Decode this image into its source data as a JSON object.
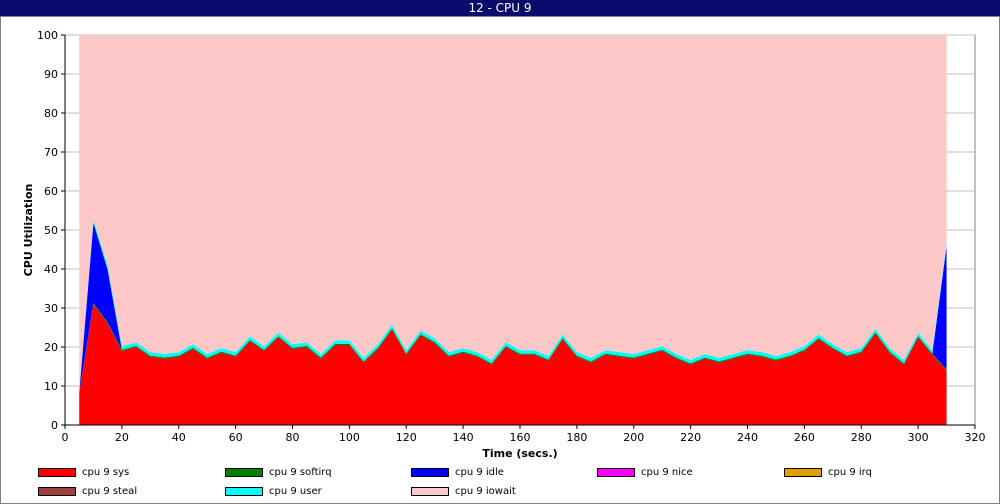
{
  "window": {
    "title": "12 - CPU 9"
  },
  "chart_data": {
    "type": "area",
    "stacked": true,
    "title": "12 - CPU 9",
    "xlabel": "Time (secs.)",
    "ylabel": "CPU Utilization",
    "xlim": [
      0,
      320
    ],
    "ylim": [
      0,
      100
    ],
    "xticks": [
      0,
      20,
      40,
      60,
      80,
      100,
      120,
      140,
      160,
      180,
      200,
      220,
      240,
      260,
      280,
      300,
      320
    ],
    "yticks": [
      0,
      10,
      20,
      30,
      40,
      50,
      60,
      70,
      80,
      90,
      100
    ],
    "grid": true,
    "legend_position": "bottom",
    "x": [
      5,
      10,
      15,
      20,
      25,
      30,
      35,
      40,
      45,
      50,
      55,
      60,
      65,
      70,
      75,
      80,
      85,
      90,
      95,
      100,
      105,
      110,
      115,
      120,
      125,
      130,
      135,
      140,
      145,
      150,
      155,
      160,
      165,
      170,
      175,
      180,
      185,
      190,
      195,
      200,
      205,
      210,
      215,
      220,
      225,
      230,
      235,
      240,
      245,
      250,
      255,
      260,
      265,
      270,
      275,
      280,
      285,
      290,
      295,
      300,
      305,
      310
    ],
    "series": [
      {
        "name": "cpu 9 sys",
        "color": "#ff0000",
        "values": [
          8,
          31,
          26,
          19,
          20,
          17.5,
          17,
          17.5,
          19.5,
          17,
          18.5,
          17.5,
          21.5,
          19,
          22.5,
          19.5,
          20,
          17,
          20.5,
          20.5,
          16,
          19.5,
          24.5,
          18,
          23,
          21,
          17.5,
          18.5,
          17.5,
          15.5,
          20,
          18,
          18,
          16.5,
          22,
          17.5,
          16,
          18,
          17.5,
          17,
          18,
          19,
          17,
          15.5,
          17,
          16,
          17,
          18,
          17.5,
          16.5,
          17.5,
          19,
          22,
          19.5,
          17.5,
          18.5,
          23.5,
          18.5,
          15.5,
          22.5,
          18,
          14
        ]
      },
      {
        "name": "cpu 9 softirq",
        "color": "#008000",
        "values": [
          0.2,
          0.3,
          0.3,
          0.3,
          0.3,
          0.3,
          0.3,
          0.3,
          0.3,
          0.3,
          0.3,
          0.3,
          0.3,
          0.3,
          0.3,
          0.3,
          0.3,
          0.3,
          0.3,
          0.3,
          0.3,
          0.3,
          0.3,
          0.3,
          0.3,
          0.3,
          0.3,
          0.3,
          0.3,
          0.3,
          0.3,
          0.3,
          0.3,
          0.3,
          0.3,
          0.3,
          0.3,
          0.3,
          0.3,
          0.3,
          0.3,
          0.3,
          0.3,
          0.3,
          0.3,
          0.3,
          0.3,
          0.3,
          0.3,
          0.3,
          0.3,
          0.3,
          0.3,
          0.3,
          0.3,
          0.3,
          0.3,
          0.3,
          0.3,
          0.3,
          0.3,
          0.3
        ]
      },
      {
        "name": "cpu 9 idle",
        "color": "#0000ff",
        "values": [
          0,
          20.5,
          13.5,
          0,
          0,
          0,
          0,
          0,
          0,
          0,
          0,
          0,
          0,
          0,
          0,
          0,
          0,
          0,
          0,
          0,
          0,
          0,
          0,
          0,
          0,
          0,
          0,
          0,
          0,
          0,
          0,
          0,
          0,
          0,
          0,
          0,
          0,
          0,
          0,
          0,
          0,
          0,
          0,
          0,
          0,
          0,
          0,
          0,
          0,
          0,
          0,
          0,
          0,
          0,
          0,
          0,
          0,
          0,
          0,
          0,
          0,
          31.5
        ]
      },
      {
        "name": "cpu 9 nice",
        "color": "#ff00ff",
        "values": [
          0,
          0,
          0,
          0,
          0,
          0,
          0,
          0,
          0,
          0,
          0,
          0,
          0,
          0,
          0,
          0,
          0,
          0,
          0,
          0,
          0,
          0,
          0,
          0,
          0,
          0,
          0,
          0,
          0,
          0,
          0,
          0,
          0,
          0,
          0,
          0,
          0,
          0,
          0,
          0,
          0,
          0,
          0,
          0,
          0,
          0,
          0,
          0,
          0,
          0,
          0,
          0,
          0,
          0,
          0,
          0,
          0,
          0,
          0,
          0,
          0,
          0
        ]
      },
      {
        "name": "cpu 9 irq",
        "color": "#e0a000",
        "values": [
          0,
          0,
          0,
          0,
          0,
          0,
          0,
          0,
          0,
          0,
          0,
          0,
          0,
          0,
          0,
          0,
          0,
          0,
          0,
          0,
          0,
          0,
          0,
          0,
          0,
          0,
          0,
          0,
          0,
          0,
          0,
          0,
          0,
          0,
          0,
          0,
          0,
          0,
          0,
          0,
          0,
          0,
          0,
          0,
          0,
          0,
          0,
          0,
          0,
          0,
          0,
          0,
          0,
          0,
          0,
          0,
          0,
          0,
          0,
          0,
          0,
          0
        ]
      },
      {
        "name": "cpu 9 steal",
        "color": "#a0403f",
        "values": [
          0,
          0,
          0,
          0,
          0,
          0,
          0,
          0,
          0,
          0,
          0,
          0,
          0,
          0,
          0,
          0,
          0,
          0,
          0,
          0,
          0,
          0,
          0,
          0,
          0,
          0,
          0,
          0,
          0,
          0,
          0,
          0,
          0,
          0,
          0,
          0,
          0,
          0,
          0,
          0,
          0,
          0,
          0,
          0,
          0,
          0,
          0,
          0,
          0,
          0,
          0,
          0,
          0,
          0,
          0,
          0,
          0,
          0,
          0,
          0,
          0,
          0
        ]
      },
      {
        "name": "cpu 9 user",
        "color": "#00ffff",
        "values": [
          0.6,
          0.9,
          0.9,
          0.9,
          0.9,
          0.9,
          0.9,
          0.9,
          0.9,
          0.9,
          0.9,
          0.9,
          0.9,
          0.9,
          0.9,
          0.9,
          0.9,
          0.9,
          0.9,
          0.9,
          0.9,
          0.9,
          0.9,
          0.9,
          0.9,
          0.9,
          0.9,
          0.9,
          0.9,
          0.9,
          0.9,
          0.9,
          0.9,
          0.9,
          0.9,
          0.9,
          0.9,
          0.9,
          0.9,
          0.9,
          0.9,
          0.9,
          0.9,
          0.9,
          0.9,
          0.9,
          0.9,
          0.9,
          0.9,
          0.9,
          0.9,
          0.9,
          0.9,
          0.9,
          0.9,
          0.9,
          0.9,
          0.9,
          0.9,
          0.9,
          0.9,
          0.9
        ]
      },
      {
        "name": "cpu 9 iowait",
        "color": "#ffc8c8",
        "fill_to_top": true
      }
    ]
  }
}
